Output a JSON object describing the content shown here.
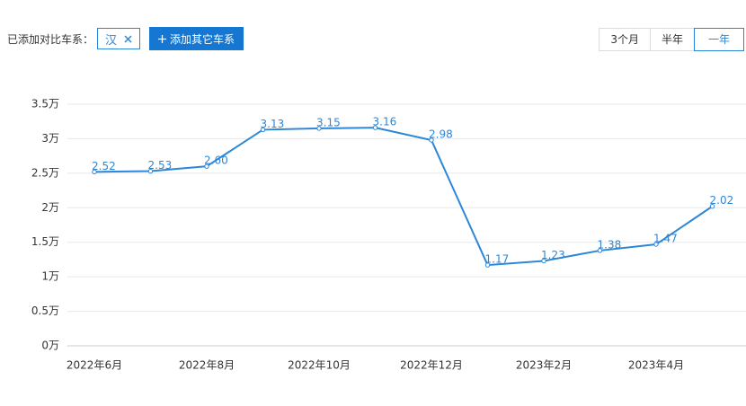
{
  "ui": {
    "compare_label": "已添加对比车系：",
    "tag": "汉",
    "add_button": "添加其它车系",
    "ranges": [
      "3个月",
      "半年",
      "一年"
    ],
    "selected_range": 2
  },
  "chart_data": {
    "type": "line",
    "categories": [
      "2022年6月",
      null,
      "2022年8月",
      null,
      "2022年10月",
      null,
      "2022年12月",
      null,
      "2023年2月",
      null,
      "2023年4月",
      null
    ],
    "series": [
      {
        "name": "汉",
        "color": "#2d87d9",
        "values": [
          2.52,
          2.53,
          2.6,
          3.13,
          3.15,
          3.16,
          2.98,
          1.17,
          1.23,
          1.38,
          1.47,
          2.02
        ],
        "value_labels": [
          "2.52",
          "2.53",
          "2.60",
          "3.13",
          "3.15",
          "3.16",
          "2.98",
          "1.17",
          "1.23",
          "1.38",
          "1.47",
          "2.02"
        ]
      }
    ],
    "ylim": [
      0,
      3.5
    ],
    "yticks": [
      {
        "value": 0,
        "label": "0万"
      },
      {
        "value": 0.5,
        "label": "0.5万"
      },
      {
        "value": 1,
        "label": "1万"
      },
      {
        "value": 1.5,
        "label": "1.5万"
      },
      {
        "value": 2,
        "label": "2万"
      },
      {
        "value": 2.5,
        "label": "2.5万"
      },
      {
        "value": 3,
        "label": "3万"
      },
      {
        "value": 3.5,
        "label": "3.5万"
      }
    ],
    "grid": true
  }
}
